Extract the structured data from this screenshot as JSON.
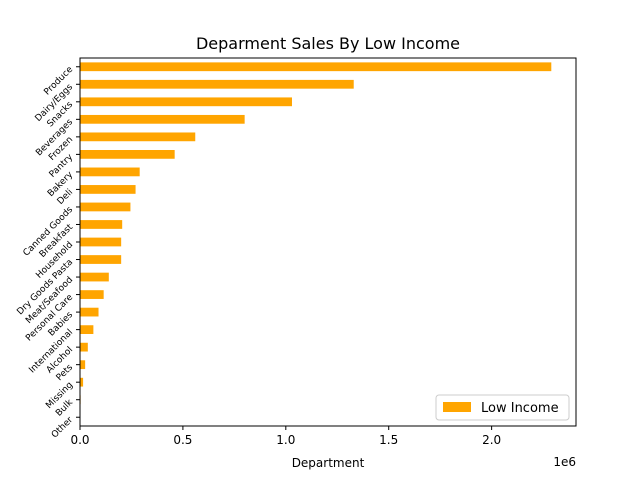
{
  "chart_data": {
    "type": "bar",
    "orientation": "horizontal",
    "title": "Deparment Sales By Low Income",
    "xlabel": "Department",
    "ylabel": "",
    "x_scale_label": "1e6",
    "xlim": [
      0,
      2.41
    ],
    "x_ticks": [
      0.0,
      0.5,
      1.0,
      1.5,
      2.0
    ],
    "x_tick_labels": [
      "0.0",
      "0.5",
      "1.0",
      "1.5",
      "2.0"
    ],
    "categories": [
      "Produce",
      "Dairy/Eggs",
      "Snacks",
      "Beverages",
      "Frozen",
      "Pantry",
      "Bakery",
      "Deli",
      "Canned Goods",
      "Breakfast",
      "Household",
      "Dry Goods Pasta",
      "Meat/Seafood",
      "Personal Care",
      "Babies",
      "International",
      "Alcohol",
      "Pets",
      "Missing",
      "Bulk",
      "Other"
    ],
    "series": [
      {
        "name": "Low Income",
        "color": "#FFA500",
        "values": [
          2.29,
          1.33,
          1.03,
          0.8,
          0.56,
          0.46,
          0.29,
          0.27,
          0.245,
          0.205,
          0.2,
          0.2,
          0.14,
          0.115,
          0.09,
          0.065,
          0.038,
          0.025,
          0.015,
          0.003,
          0.002
        ]
      }
    ],
    "legend_position": "lower-right",
    "grid": false
  }
}
